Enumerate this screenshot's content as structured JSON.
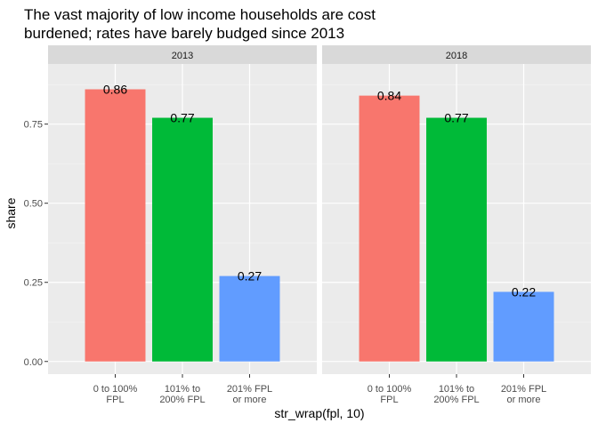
{
  "chart_data": {
    "type": "bar",
    "title_lines": [
      "The vast majority of low income households are cost",
      "burdened; rates have barely budged since 2013"
    ],
    "xlabel": "str_wrap(fpl, 10)",
    "ylabel": "share",
    "ylim": [
      -0.04,
      0.94
    ],
    "yticks": [
      0,
      0.25,
      0.5,
      0.75
    ],
    "ytick_labels": [
      "0.00",
      "0.25",
      "0.50",
      "0.75"
    ],
    "categories": [
      [
        "0 to 100%",
        "FPL"
      ],
      [
        "101% to",
        "200% FPL"
      ],
      [
        "201% FPL",
        "or more"
      ]
    ],
    "colors": [
      "#F8766D",
      "#00BA38",
      "#619CFF"
    ],
    "panels": [
      {
        "label": "2013",
        "values": [
          0.86,
          0.77,
          0.27
        ],
        "value_labels": [
          "0.86",
          "0.77",
          "0.27"
        ]
      },
      {
        "label": "2018",
        "values": [
          0.84,
          0.77,
          0.22
        ],
        "value_labels": [
          "0.84",
          "0.77",
          "0.22"
        ]
      }
    ],
    "grid": true,
    "legend": "none"
  }
}
